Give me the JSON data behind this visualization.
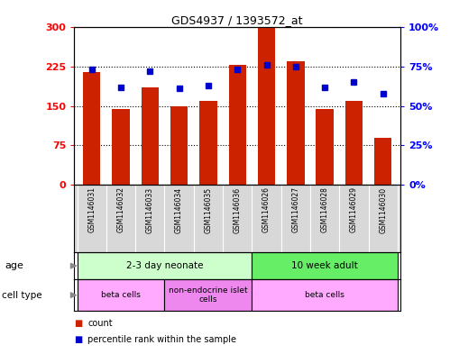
{
  "title": "GDS4937 / 1393572_at",
  "samples": [
    "GSM1146031",
    "GSM1146032",
    "GSM1146033",
    "GSM1146034",
    "GSM1146035",
    "GSM1146036",
    "GSM1146026",
    "GSM1146027",
    "GSM1146028",
    "GSM1146029",
    "GSM1146030"
  ],
  "counts": [
    215,
    145,
    185,
    150,
    160,
    228,
    300,
    235,
    145,
    160,
    90
  ],
  "percentiles": [
    73,
    62,
    72,
    61,
    63,
    73,
    76,
    75,
    62,
    65,
    58
  ],
  "bar_color": "#cc2200",
  "dot_color": "#0000cc",
  "ylim_left": [
    0,
    300
  ],
  "ylim_right": [
    0,
    100
  ],
  "yticks_left": [
    0,
    75,
    150,
    225,
    300
  ],
  "yticks_right": [
    0,
    25,
    50,
    75,
    100
  ],
  "ytick_labels_left": [
    "0",
    "75",
    "150",
    "225",
    "300"
  ],
  "ytick_labels_right": [
    "0%",
    "25%",
    "50%",
    "75%",
    "100%"
  ],
  "age_groups": [
    {
      "label": "2-3 day neonate",
      "start": 0,
      "end": 6,
      "color": "#ccffcc"
    },
    {
      "label": "10 week adult",
      "start": 6,
      "end": 11,
      "color": "#66ee66"
    }
  ],
  "cell_type_groups": [
    {
      "label": "beta cells",
      "start": 0,
      "end": 3,
      "color": "#ffaaff"
    },
    {
      "label": "non-endocrine islet\ncells",
      "start": 3,
      "end": 6,
      "color": "#ee88ee"
    },
    {
      "label": "beta cells",
      "start": 6,
      "end": 11,
      "color": "#ffaaff"
    }
  ],
  "legend_count_label": "count",
  "legend_percentile_label": "percentile rank within the sample"
}
